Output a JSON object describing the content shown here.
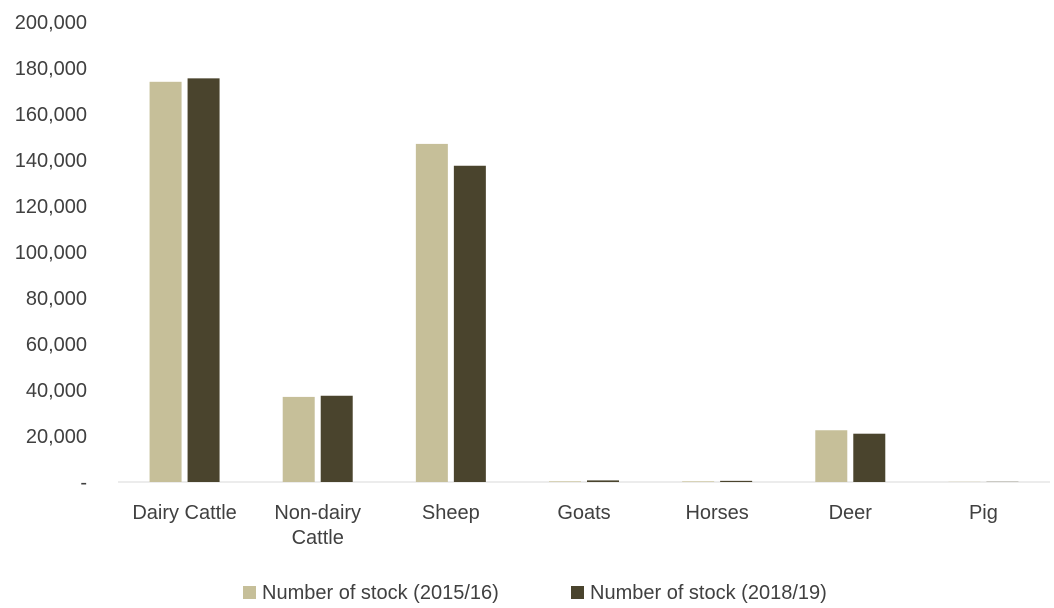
{
  "chart_data": {
    "type": "bar",
    "categories": [
      "Dairy Cattle",
      "Non-dairy Cattle",
      "Sheep",
      "Goats",
      "Horses",
      "Deer",
      "Pig"
    ],
    "series": [
      {
        "name": "Number of stock (2015/16)",
        "color": "#c6bf99",
        "values": [
          174000,
          37000,
          147000,
          300,
          300,
          22500,
          100
        ]
      },
      {
        "name": "Number of stock (2018/19)",
        "color": "#4a442d",
        "values": [
          175500,
          37500,
          137500,
          700,
          500,
          21000,
          100
        ]
      }
    ],
    "y_ticks": [
      0,
      20000,
      40000,
      60000,
      80000,
      100000,
      120000,
      140000,
      160000,
      180000,
      200000
    ],
    "y_tick_labels": [
      "-",
      "20,000",
      "40,000",
      "60,000",
      "80,000",
      "100,000",
      "120,000",
      "140,000",
      "160,000",
      "180,000",
      "200,000"
    ],
    "ylim": [
      0,
      200000
    ],
    "grid": false,
    "legend": "bottom",
    "title": "",
    "xlabel": "",
    "ylabel": ""
  }
}
